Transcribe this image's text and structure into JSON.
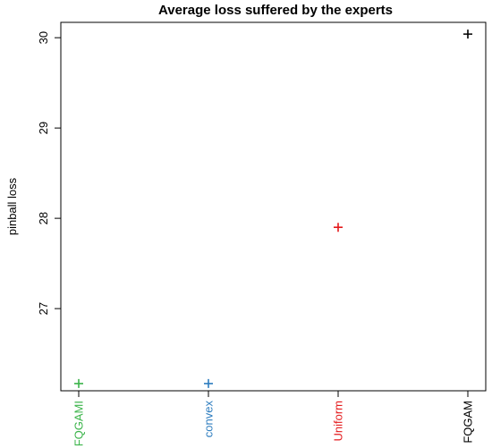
{
  "chart_data": {
    "type": "scatter",
    "title": "Average loss suffered by the experts",
    "xlabel": "",
    "ylabel": "pinball loss",
    "categories": [
      "FQGAMI",
      "convex",
      "Uniform",
      "FQGAM"
    ],
    "values": [
      26.17,
      26.17,
      27.9,
      30.04
    ],
    "colors": [
      "#3cb44b",
      "#2e7dbf",
      "#e41a1c",
      "#000000"
    ],
    "yticks": [
      27,
      28,
      29,
      30
    ],
    "ylim": [
      26.09,
      30.17
    ],
    "marker": "plus",
    "grid": false,
    "legend": "none"
  }
}
